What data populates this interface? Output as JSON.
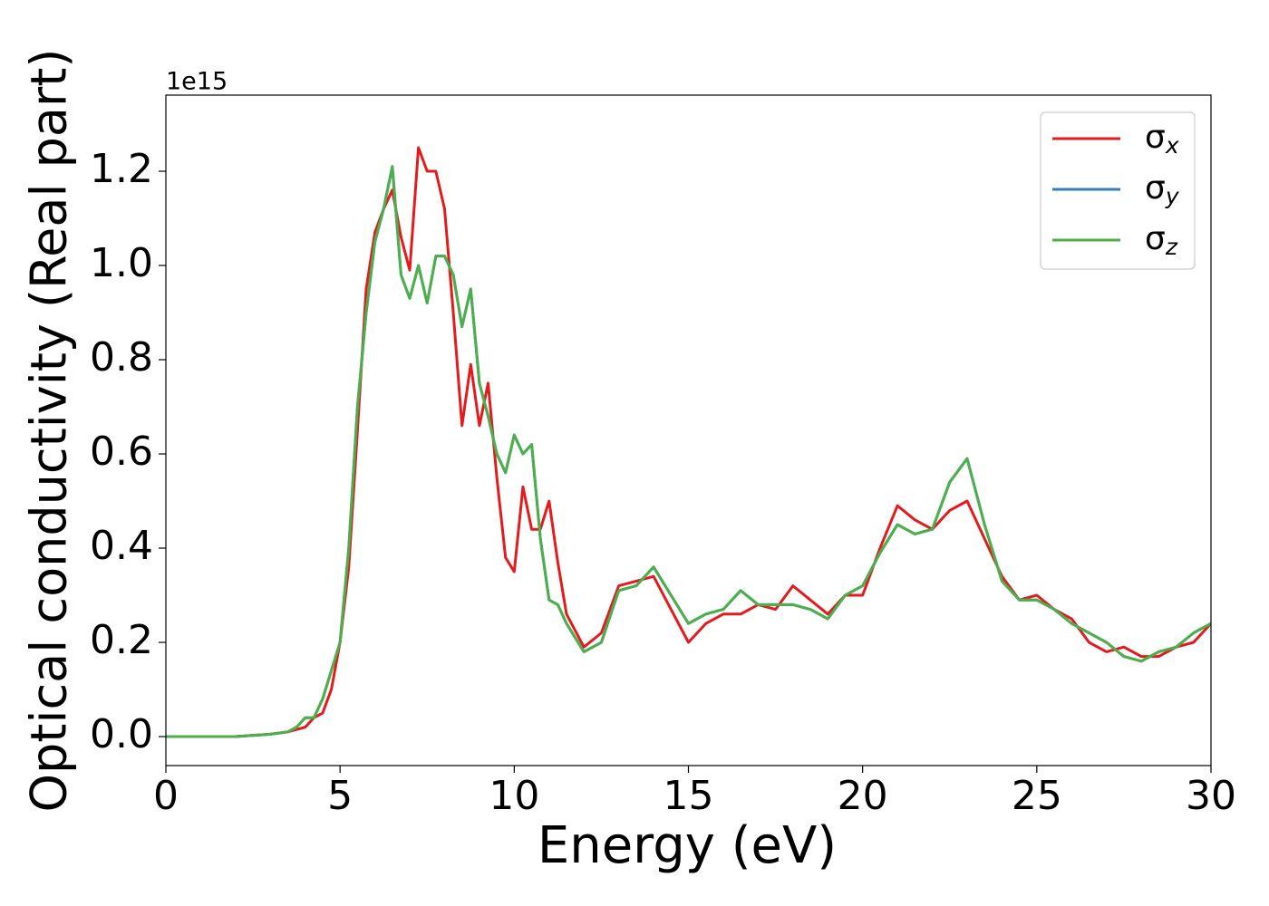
{
  "chart_data": {
    "type": "line",
    "x_label": "Energy (eV)",
    "y_label": "Optical conductivity (Real part)",
    "y_offset_label": "1e15",
    "x": [
      0,
      1,
      2,
      3,
      3.5,
      3.75,
      4,
      4.25,
      4.5,
      4.75,
      5,
      5.25,
      5.5,
      5.75,
      6,
      6.25,
      6.5,
      6.75,
      7,
      7.25,
      7.5,
      7.75,
      8,
      8.25,
      8.5,
      8.75,
      9,
      9.25,
      9.5,
      9.75,
      10,
      10.25,
      10.5,
      10.75,
      11,
      11.25,
      11.5,
      12,
      12.5,
      13,
      13.5,
      14,
      14.5,
      15,
      15.5,
      16,
      16.5,
      17,
      17.5,
      18,
      18.5,
      19,
      19.5,
      20,
      20.5,
      21,
      21.5,
      22,
      22.5,
      23,
      23.5,
      24,
      24.5,
      25,
      25.5,
      26,
      26.5,
      27,
      27.5,
      28,
      28.5,
      29,
      29.5,
      30
    ],
    "series": [
      {
        "name": "σx",
        "color": "#e41a1c",
        "values": [
          0,
          0,
          0,
          0.005,
          0.01,
          0.015,
          0.02,
          0.04,
          0.05,
          0.1,
          0.2,
          0.36,
          0.65,
          0.95,
          1.07,
          1.12,
          1.16,
          1.06,
          0.99,
          1.25,
          1.2,
          1.2,
          1.12,
          0.9,
          0.66,
          0.79,
          0.66,
          0.75,
          0.55,
          0.38,
          0.35,
          0.53,
          0.44,
          0.44,
          0.5,
          0.37,
          0.26,
          0.19,
          0.22,
          0.32,
          0.33,
          0.34,
          0.27,
          0.2,
          0.24,
          0.26,
          0.26,
          0.28,
          0.27,
          0.32,
          0.29,
          0.26,
          0.3,
          0.3,
          0.4,
          0.49,
          0.46,
          0.44,
          0.48,
          0.5,
          0.42,
          0.34,
          0.29,
          0.3,
          0.27,
          0.25,
          0.2,
          0.18,
          0.19,
          0.17,
          0.17,
          0.19,
          0.2,
          0.24
        ]
      },
      {
        "name": "σy",
        "color": "#377eb8",
        "values": [
          0,
          0,
          0,
          0.005,
          0.01,
          0.02,
          0.04,
          0.04,
          0.08,
          0.14,
          0.2,
          0.4,
          0.7,
          0.9,
          1.05,
          1.12,
          1.21,
          0.98,
          0.93,
          1.0,
          0.92,
          1.02,
          1.02,
          0.98,
          0.87,
          0.95,
          0.75,
          0.68,
          0.6,
          0.56,
          0.64,
          0.6,
          0.62,
          0.42,
          0.29,
          0.28,
          0.24,
          0.18,
          0.2,
          0.31,
          0.32,
          0.36,
          0.3,
          0.24,
          0.26,
          0.27,
          0.31,
          0.28,
          0.28,
          0.28,
          0.27,
          0.25,
          0.3,
          0.32,
          0.39,
          0.45,
          0.43,
          0.44,
          0.54,
          0.59,
          0.45,
          0.33,
          0.29,
          0.29,
          0.27,
          0.24,
          0.22,
          0.2,
          0.17,
          0.16,
          0.18,
          0.19,
          0.22,
          0.24
        ]
      },
      {
        "name": "σz",
        "color": "#4daf4a",
        "values": [
          0,
          0,
          0,
          0.005,
          0.01,
          0.02,
          0.04,
          0.04,
          0.08,
          0.14,
          0.2,
          0.4,
          0.7,
          0.9,
          1.05,
          1.12,
          1.21,
          0.98,
          0.93,
          1.0,
          0.92,
          1.02,
          1.02,
          0.98,
          0.87,
          0.95,
          0.75,
          0.68,
          0.6,
          0.56,
          0.64,
          0.6,
          0.62,
          0.42,
          0.29,
          0.28,
          0.24,
          0.18,
          0.2,
          0.31,
          0.32,
          0.36,
          0.3,
          0.24,
          0.26,
          0.27,
          0.31,
          0.28,
          0.28,
          0.28,
          0.27,
          0.25,
          0.3,
          0.32,
          0.39,
          0.45,
          0.43,
          0.44,
          0.54,
          0.59,
          0.45,
          0.33,
          0.29,
          0.29,
          0.27,
          0.24,
          0.22,
          0.2,
          0.17,
          0.16,
          0.18,
          0.19,
          0.22,
          0.24
        ]
      }
    ],
    "xlim": [
      0,
      30
    ],
    "xticks": [
      0,
      5,
      10,
      15,
      20,
      25,
      30
    ],
    "ylim": [
      -0.0615,
      1.3615
    ],
    "yticks": [
      {
        "value": 0,
        "label": "0.0"
      },
      {
        "value": 0.2,
        "label": "0.2"
      },
      {
        "value": 0.4,
        "label": "0.4"
      },
      {
        "value": 0.6,
        "label": "0.6"
      },
      {
        "value": 0.8,
        "label": "0.8"
      },
      {
        "value": 1.0,
        "label": "1.0"
      },
      {
        "value": 1.2,
        "label": "1.2"
      }
    ],
    "grid": false,
    "legend": "upper right"
  }
}
